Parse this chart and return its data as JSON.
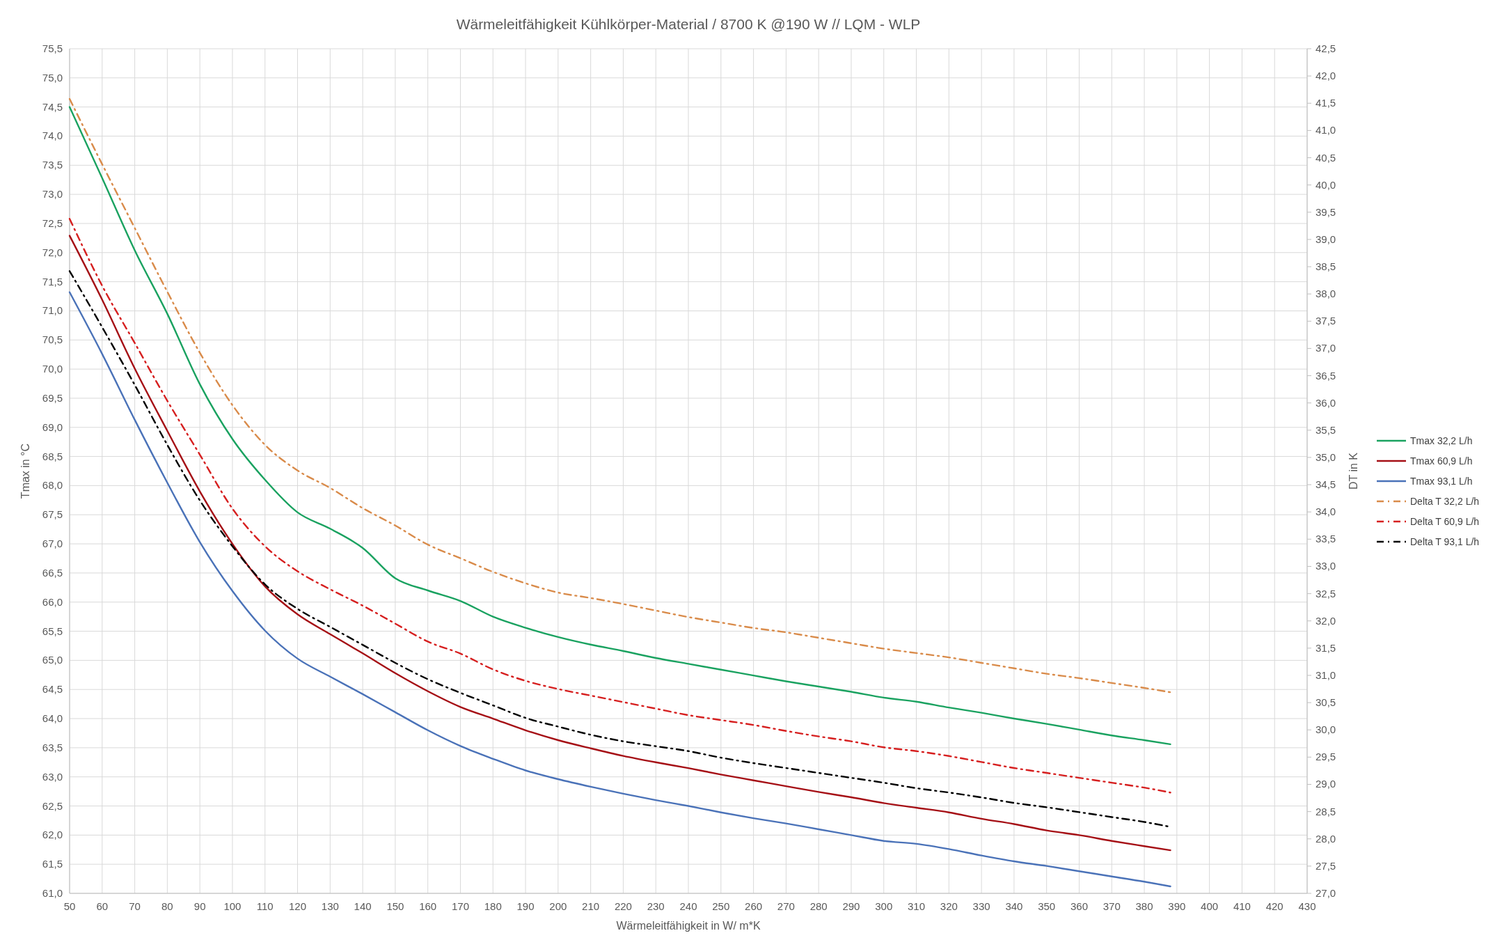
{
  "chart_data": {
    "type": "line",
    "title": "Wärmeleitfähigkeit Kühlkörper-Material / 8700 K @190 W // LQM - WLP",
    "xlabel": "Wärmeleitfähigkeit in W/ m*K",
    "ylabel": "Tmax in °C",
    "y2label": "DT in K",
    "x": [
      50,
      60,
      70,
      80,
      90,
      100,
      110,
      120,
      130,
      140,
      150,
      160,
      170,
      180,
      190,
      200,
      210,
      220,
      230,
      240,
      250,
      260,
      270,
      280,
      290,
      300,
      310,
      320,
      330,
      340,
      350,
      360,
      370,
      380,
      388
    ],
    "xlim": [
      50,
      430
    ],
    "xticks": [
      50,
      60,
      70,
      80,
      90,
      100,
      110,
      120,
      130,
      140,
      150,
      160,
      170,
      180,
      190,
      200,
      210,
      220,
      230,
      240,
      250,
      260,
      270,
      280,
      290,
      300,
      310,
      320,
      330,
      340,
      350,
      360,
      370,
      380,
      390,
      400,
      410,
      420,
      430
    ],
    "ylim": [
      61,
      75.5
    ],
    "yticks": [
      {
        "value": 61,
        "label": "61,0"
      },
      {
        "value": 61.5,
        "label": "61,5"
      },
      {
        "value": 62,
        "label": "62,0"
      },
      {
        "value": 62.5,
        "label": "62,5"
      },
      {
        "value": 63,
        "label": "63,0"
      },
      {
        "value": 63.5,
        "label": "63,5"
      },
      {
        "value": 64,
        "label": "64,0"
      },
      {
        "value": 64.5,
        "label": "64,5"
      },
      {
        "value": 65,
        "label": "65,0"
      },
      {
        "value": 65.5,
        "label": "65,5"
      },
      {
        "value": 66,
        "label": "66,0"
      },
      {
        "value": 66.5,
        "label": "66,5"
      },
      {
        "value": 67,
        "label": "67,0"
      },
      {
        "value": 67.5,
        "label": "67,5"
      },
      {
        "value": 68,
        "label": "68,0"
      },
      {
        "value": 68.5,
        "label": "68,5"
      },
      {
        "value": 69,
        "label": "69,0"
      },
      {
        "value": 69.5,
        "label": "69,5"
      },
      {
        "value": 70,
        "label": "70,0"
      },
      {
        "value": 70.5,
        "label": "70,5"
      },
      {
        "value": 71,
        "label": "71,0"
      },
      {
        "value": 71.5,
        "label": "71,5"
      },
      {
        "value": 72,
        "label": "72,0"
      },
      {
        "value": 72.5,
        "label": "72,5"
      },
      {
        "value": 73,
        "label": "73,0"
      },
      {
        "value": 73.5,
        "label": "73,5"
      },
      {
        "value": 74,
        "label": "74,0"
      },
      {
        "value": 74.5,
        "label": "74,5"
      },
      {
        "value": 75,
        "label": "75,0"
      },
      {
        "value": 75.5,
        "label": "75,5"
      }
    ],
    "y2lim": [
      27,
      42.5
    ],
    "y2ticks": [
      {
        "value": 27,
        "label": "27,0"
      },
      {
        "value": 27.5,
        "label": "27,5"
      },
      {
        "value": 28,
        "label": "28,0"
      },
      {
        "value": 28.5,
        "label": "28,5"
      },
      {
        "value": 29,
        "label": "29,0"
      },
      {
        "value": 29.5,
        "label": "29,5"
      },
      {
        "value": 30,
        "label": "30,0"
      },
      {
        "value": 30.5,
        "label": "30,5"
      },
      {
        "value": 31,
        "label": "31,0"
      },
      {
        "value": 31.5,
        "label": "31,5"
      },
      {
        "value": 32,
        "label": "32,0"
      },
      {
        "value": 32.5,
        "label": "32,5"
      },
      {
        "value": 33,
        "label": "33,0"
      },
      {
        "value": 33.5,
        "label": "33,5"
      },
      {
        "value": 34,
        "label": "34,0"
      },
      {
        "value": 34.5,
        "label": "34,5"
      },
      {
        "value": 35,
        "label": "35,0"
      },
      {
        "value": 35.5,
        "label": "35,5"
      },
      {
        "value": 36,
        "label": "36,0"
      },
      {
        "value": 36.5,
        "label": "36,5"
      },
      {
        "value": 37,
        "label": "37,0"
      },
      {
        "value": 37.5,
        "label": "37,5"
      },
      {
        "value": 38,
        "label": "38,0"
      },
      {
        "value": 38.5,
        "label": "38,5"
      },
      {
        "value": 39,
        "label": "39,0"
      },
      {
        "value": 39.5,
        "label": "39,5"
      },
      {
        "value": 40,
        "label": "40,0"
      },
      {
        "value": 40.5,
        "label": "40,5"
      },
      {
        "value": 41,
        "label": "41,0"
      },
      {
        "value": 41.5,
        "label": "41,5"
      },
      {
        "value": 42,
        "label": "42,0"
      },
      {
        "value": 42.5,
        "label": "42,5"
      }
    ],
    "grid": true,
    "legend": "right",
    "marker": "none",
    "series": [
      {
        "name": "Tmax 32,2 L/h",
        "color": "#1aa260",
        "line_style": "solid",
        "values": [
          74.5,
          73.28,
          72.04,
          70.95,
          69.74,
          68.8,
          68.1,
          67.54,
          67.26,
          66.93,
          66.41,
          66.2,
          66.02,
          65.75,
          65.56,
          65.4,
          65.27,
          65.16,
          65.04,
          64.94,
          64.84,
          64.74,
          64.64,
          64.55,
          64.46,
          64.36,
          64.29,
          64.19,
          64.1,
          64.0,
          63.91,
          63.81,
          63.71,
          63.63,
          63.56
        ]
      },
      {
        "name": "Tmax 60,9 L/h",
        "color": "#a50f15",
        "line_style": "solid",
        "values": [
          72.29,
          71.19,
          70.01,
          68.94,
          67.9,
          67.0,
          66.27,
          65.79,
          65.45,
          65.12,
          64.78,
          64.47,
          64.2,
          64.0,
          63.8,
          63.63,
          63.49,
          63.36,
          63.25,
          63.15,
          63.04,
          62.94,
          62.84,
          62.74,
          62.65,
          62.55,
          62.47,
          62.39,
          62.28,
          62.19,
          62.08,
          62.0,
          61.9,
          61.81,
          61.74
        ]
      },
      {
        "name": "Tmax 93,1 L/h",
        "color": "#4a72b8",
        "line_style": "solid",
        "values": [
          71.32,
          70.26,
          69.13,
          68.05,
          67.03,
          66.19,
          65.51,
          65.03,
          64.72,
          64.42,
          64.11,
          63.8,
          63.53,
          63.31,
          63.11,
          62.96,
          62.83,
          62.71,
          62.6,
          62.5,
          62.39,
          62.29,
          62.2,
          62.1,
          62.0,
          61.9,
          61.85,
          61.76,
          61.65,
          61.55,
          61.47,
          61.38,
          61.29,
          61.2,
          61.12
        ]
      },
      {
        "name": "Delta T 32,2 L/h",
        "color": "#d98b4a",
        "line_style": "dashed",
        "axis": "y2",
        "values": [
          41.58,
          40.38,
          39.21,
          38.04,
          36.92,
          35.96,
          35.23,
          34.76,
          34.44,
          34.07,
          33.75,
          33.4,
          33.15,
          32.9,
          32.69,
          32.52,
          32.42,
          32.31,
          32.19,
          32.07,
          31.97,
          31.87,
          31.79,
          31.69,
          31.59,
          31.49,
          31.41,
          31.33,
          31.23,
          31.13,
          31.03,
          30.95,
          30.86,
          30.77,
          30.69
        ]
      },
      {
        "name": "Delta T 60,9 L/h",
        "color": "#d61f1f",
        "line_style": "dashed",
        "axis": "y2",
        "values": [
          39.38,
          38.15,
          37.1,
          36.04,
          35.05,
          34.06,
          33.37,
          32.91,
          32.58,
          32.28,
          31.95,
          31.62,
          31.4,
          31.11,
          30.9,
          30.75,
          30.63,
          30.51,
          30.39,
          30.27,
          30.18,
          30.09,
          29.98,
          29.88,
          29.79,
          29.68,
          29.61,
          29.52,
          29.41,
          29.3,
          29.21,
          29.12,
          29.03,
          28.94,
          28.85
        ]
      },
      {
        "name": "Delta T 93,1 L/h",
        "color": "#000000",
        "line_style": "dashed",
        "axis": "y2",
        "values": [
          38.42,
          37.39,
          36.33,
          35.23,
          34.21,
          33.37,
          32.67,
          32.22,
          31.89,
          31.56,
          31.23,
          30.93,
          30.68,
          30.45,
          30.22,
          30.06,
          29.91,
          29.79,
          29.7,
          29.61,
          29.49,
          29.39,
          29.3,
          29.21,
          29.12,
          29.03,
          28.93,
          28.85,
          28.76,
          28.66,
          28.58,
          28.49,
          28.4,
          28.31,
          28.22
        ]
      }
    ]
  }
}
